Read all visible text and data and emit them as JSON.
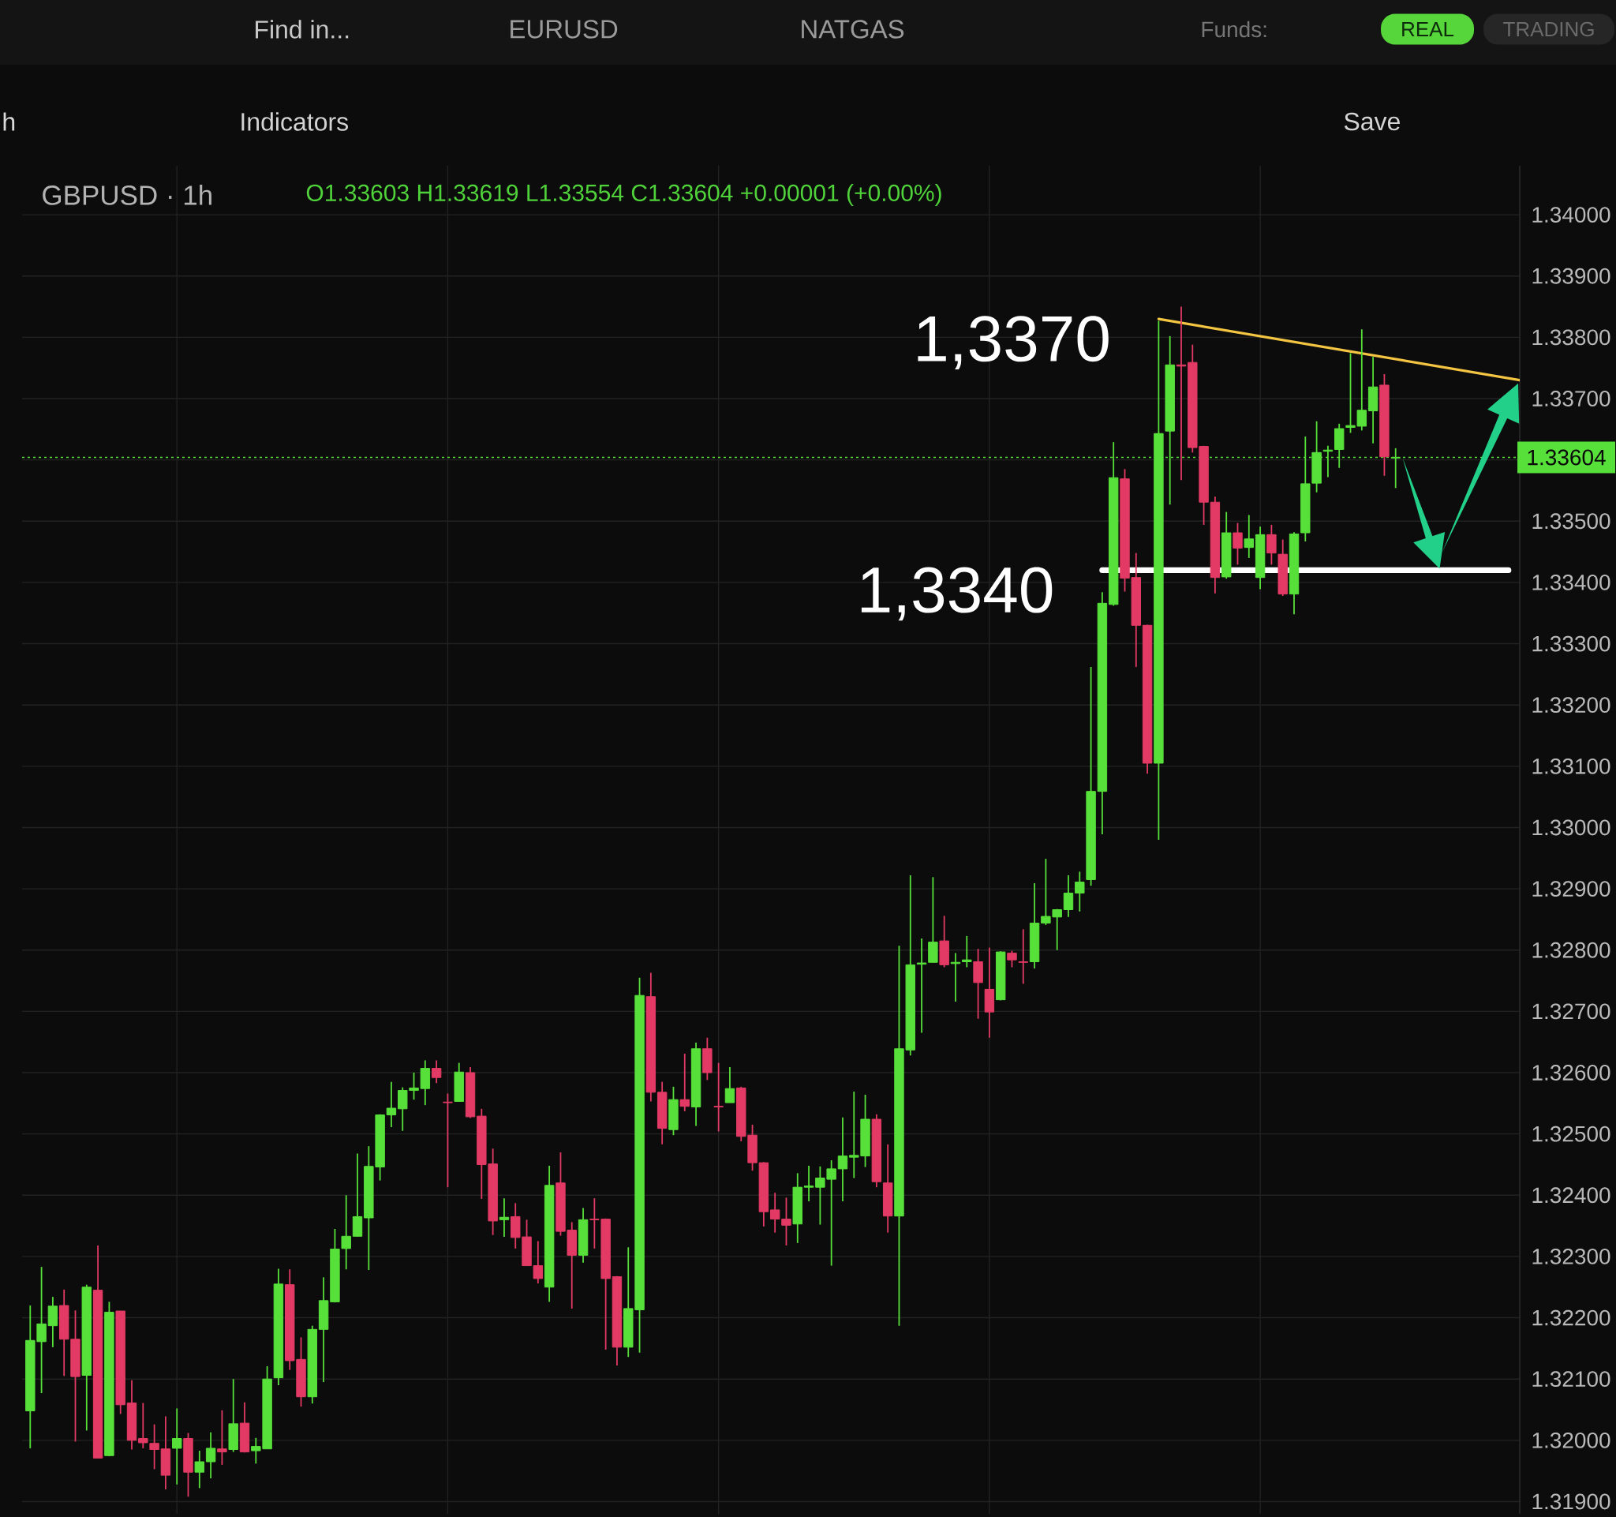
{
  "chart_data": {
    "type": "candlestick",
    "title": "GBPUSD · 1h",
    "subtitle": "O1.33603 H1.33619 L1.33554 C1.33604 +0.00001 (+0.00%)",
    "categories": [
      null,
      null,
      null,
      null,
      null,
      null,
      null,
      null,
      null,
      null,
      null,
      null,
      null,
      null,
      null,
      null,
      null,
      null,
      null,
      null,
      null,
      null,
      null,
      null,
      null,
      null,
      null,
      null,
      null,
      null,
      null,
      null,
      null,
      null,
      null,
      null,
      null,
      null,
      null,
      null,
      null,
      null,
      null,
      null,
      null,
      null,
      null,
      null,
      null,
      null,
      null,
      null,
      null,
      null,
      null,
      null,
      null,
      null,
      null,
      null,
      null,
      null,
      null,
      null,
      null,
      null,
      null,
      null,
      null,
      null,
      null,
      null,
      null,
      null,
      null,
      null,
      null,
      null,
      null,
      null,
      null,
      null,
      null,
      null,
      null,
      null,
      null,
      null,
      null,
      null,
      null,
      null,
      null,
      null,
      null,
      null,
      null,
      null,
      null,
      null,
      null,
      null,
      null,
      null,
      null,
      null,
      null,
      null,
      null,
      null,
      null,
      null,
      null,
      null,
      null,
      null,
      null,
      null,
      null,
      null,
      null,
      null,
      null,
      null,
      null,
      null,
      null,
      null,
      null,
      null,
      null,
      null,
      null
    ],
    "ohlc": [
      [
        1.32048,
        1.3222,
        1.31987,
        1.32163
      ],
      [
        1.32161,
        1.32283,
        1.32077,
        1.3219
      ],
      [
        1.32187,
        1.32234,
        1.32152,
        1.32219
      ],
      [
        1.3222,
        1.32246,
        1.32105,
        1.32165
      ],
      [
        1.32165,
        1.32212,
        1.31998,
        1.32104
      ],
      [
        1.32106,
        1.32254,
        1.32016,
        1.3225
      ],
      [
        1.32245,
        1.32318,
        1.31971,
        1.31971
      ],
      [
        1.31975,
        1.32226,
        1.31974,
        1.32209
      ],
      [
        1.32211,
        1.32211,
        1.32043,
        1.32058
      ],
      [
        1.32061,
        1.32098,
        1.31985,
        1.32
      ],
      [
        1.32003,
        1.32061,
        1.31987,
        1.31996
      ],
      [
        1.31995,
        1.32026,
        1.31953,
        1.31985
      ],
      [
        1.31986,
        1.32039,
        1.3192,
        1.31943
      ],
      [
        1.31987,
        1.32052,
        1.31928,
        1.32003
      ],
      [
        1.32003,
        1.32012,
        1.31908,
        1.31948
      ],
      [
        1.31948,
        1.31983,
        1.31922,
        1.31965
      ],
      [
        1.31965,
        1.32013,
        1.31938,
        1.31987
      ],
      [
        1.31986,
        1.32049,
        1.3196,
        1.31981
      ],
      [
        1.31985,
        1.321,
        1.31981,
        1.32027
      ],
      [
        1.32028,
        1.32062,
        1.3198,
        1.31981
      ],
      [
        1.31983,
        1.32004,
        1.31962,
        1.3199
      ],
      [
        1.31986,
        1.32121,
        1.31986,
        1.321
      ],
      [
        1.32102,
        1.3228,
        1.3209,
        1.32255
      ],
      [
        1.32254,
        1.32279,
        1.32115,
        1.3213
      ],
      [
        1.32132,
        1.32168,
        1.32055,
        1.32071
      ],
      [
        1.32071,
        1.32187,
        1.3206,
        1.32181
      ],
      [
        1.32181,
        1.32266,
        1.32095,
        1.32228
      ],
      [
        1.32226,
        1.32345,
        1.32225,
        1.32312
      ],
      [
        1.32313,
        1.324,
        1.32279,
        1.32333
      ],
      [
        1.32333,
        1.32468,
        1.32332,
        1.32365
      ],
      [
        1.32363,
        1.3248,
        1.32278,
        1.32447
      ],
      [
        1.32446,
        1.32532,
        1.32424,
        1.32531
      ],
      [
        1.32531,
        1.32585,
        1.32511,
        1.32542
      ],
      [
        1.32541,
        1.32576,
        1.32505,
        1.32571
      ],
      [
        1.32571,
        1.326,
        1.32556,
        1.32575
      ],
      [
        1.32574,
        1.3262,
        1.32547,
        1.32607
      ],
      [
        1.32607,
        1.3262,
        1.32583,
        1.32592
      ],
      [
        1.32552,
        1.32566,
        1.32413,
        1.32551
      ],
      [
        1.32553,
        1.32616,
        1.32553,
        1.32601
      ],
      [
        1.326,
        1.32609,
        1.32526,
        1.32528
      ],
      [
        1.32529,
        1.32541,
        1.32394,
        1.3245
      ],
      [
        1.32451,
        1.32476,
        1.32335,
        1.32358
      ],
      [
        1.3236,
        1.32395,
        1.32332,
        1.32364
      ],
      [
        1.32365,
        1.32387,
        1.32313,
        1.32331
      ],
      [
        1.32332,
        1.3236,
        1.32285,
        1.32285
      ],
      [
        1.32285,
        1.32325,
        1.32256,
        1.32264
      ],
      [
        1.3225,
        1.32448,
        1.32226,
        1.32416
      ],
      [
        1.3242,
        1.3247,
        1.32334,
        1.32341
      ],
      [
        1.32343,
        1.32356,
        1.32215,
        1.32302
      ],
      [
        1.32302,
        1.32379,
        1.3229,
        1.3236
      ],
      [
        1.32361,
        1.32395,
        1.32313,
        1.3236
      ],
      [
        1.32361,
        1.32362,
        1.32148,
        1.32264
      ],
      [
        1.32267,
        1.32268,
        1.32122,
        1.32152
      ],
      [
        1.32152,
        1.32315,
        1.32136,
        1.32215
      ],
      [
        1.32213,
        1.32755,
        1.32143,
        1.32726
      ],
      [
        1.32724,
        1.32763,
        1.32553,
        1.32568
      ],
      [
        1.32568,
        1.32585,
        1.32483,
        1.32509
      ],
      [
        1.32507,
        1.32577,
        1.32498,
        1.32556
      ],
      [
        1.32556,
        1.32631,
        1.32537,
        1.32545
      ],
      [
        1.32544,
        1.32649,
        1.32513,
        1.32639
      ],
      [
        1.32639,
        1.32657,
        1.32588,
        1.326
      ],
      [
        1.32545,
        1.32616,
        1.32504,
        1.32544
      ],
      [
        1.32551,
        1.32609,
        1.32551,
        1.32574
      ],
      [
        1.32575,
        1.32577,
        1.32488,
        1.32496
      ],
      [
        1.32498,
        1.32515,
        1.3244,
        1.32453
      ],
      [
        1.32453,
        1.32454,
        1.32349,
        1.32373
      ],
      [
        1.32376,
        1.32404,
        1.32339,
        1.32361
      ],
      [
        1.32361,
        1.32396,
        1.32318,
        1.32351
      ],
      [
        1.32353,
        1.32436,
        1.32322,
        1.32413
      ],
      [
        1.32413,
        1.32448,
        1.3239,
        1.32415
      ],
      [
        1.32413,
        1.32447,
        1.32352,
        1.32428
      ],
      [
        1.32426,
        1.32457,
        1.32285,
        1.32443
      ],
      [
        1.32443,
        1.32527,
        1.3239,
        1.32464
      ],
      [
        1.32462,
        1.32569,
        1.32428,
        1.32465
      ],
      [
        1.32464,
        1.32564,
        1.32446,
        1.32524
      ],
      [
        1.32524,
        1.32532,
        1.32413,
        1.32422
      ],
      [
        1.3242,
        1.32483,
        1.32339,
        1.32366
      ],
      [
        1.32366,
        1.32807,
        1.32187,
        1.32639
      ],
      [
        1.32637,
        1.32922,
        1.32628,
        1.32776
      ],
      [
        1.32777,
        1.32819,
        1.32665,
        1.32779
      ],
      [
        1.3278,
        1.32919,
        1.3278,
        1.32813
      ],
      [
        1.32815,
        1.32856,
        1.32772,
        1.32776
      ],
      [
        1.32778,
        1.32795,
        1.32716,
        1.3278
      ],
      [
        1.32781,
        1.32823,
        1.32772,
        1.32784
      ],
      [
        1.32781,
        1.32802,
        1.32688,
        1.32747
      ],
      [
        1.32736,
        1.32804,
        1.32657,
        1.32699
      ],
      [
        1.32719,
        1.32798,
        1.32718,
        1.32797
      ],
      [
        1.32795,
        1.32799,
        1.32772,
        1.32784
      ],
      [
        1.32781,
        1.32834,
        1.32745,
        1.3278
      ],
      [
        1.32781,
        1.32909,
        1.3277,
        1.32844
      ],
      [
        1.32844,
        1.32949,
        1.32841,
        1.32855
      ],
      [
        1.32854,
        1.32867,
        1.328,
        1.32866
      ],
      [
        1.32866,
        1.32922,
        1.32854,
        1.32893
      ],
      [
        1.32893,
        1.32928,
        1.32863,
        1.32911
      ],
      [
        1.32915,
        1.33262,
        1.32905,
        1.33059
      ],
      [
        1.33059,
        1.33384,
        1.32989,
        1.33366
      ],
      [
        1.33364,
        1.33629,
        1.33362,
        1.33571
      ],
      [
        1.33569,
        1.33585,
        1.33385,
        1.33407
      ],
      [
        1.33408,
        1.33448,
        1.33262,
        1.3333
      ],
      [
        1.3333,
        1.33331,
        1.33088,
        1.33105
      ],
      [
        1.33105,
        1.33827,
        1.3298,
        1.33643
      ],
      [
        1.33647,
        1.33802,
        1.33527,
        1.33755
      ],
      [
        1.33755,
        1.3385,
        1.33567,
        1.33753
      ],
      [
        1.33759,
        1.33788,
        1.33612,
        1.3362
      ],
      [
        1.33622,
        1.33623,
        1.33494,
        1.33531
      ],
      [
        1.33531,
        1.3354,
        1.33382,
        1.33408
      ],
      [
        1.33409,
        1.33515,
        1.33406,
        1.33481
      ],
      [
        1.33481,
        1.33497,
        1.33429,
        1.33456
      ],
      [
        1.33457,
        1.3351,
        1.3344,
        1.33471
      ],
      [
        1.33408,
        1.33491,
        1.33389,
        1.33478
      ],
      [
        1.33478,
        1.33494,
        1.33429,
        1.33448
      ],
      [
        1.33446,
        1.3347,
        1.33378,
        1.33381
      ],
      [
        1.33381,
        1.33482,
        1.33348,
        1.33479
      ],
      [
        1.33481,
        1.33638,
        1.33467,
        1.33561
      ],
      [
        1.33562,
        1.33663,
        1.33547,
        1.33612
      ],
      [
        1.33614,
        1.33623,
        1.33572,
        1.33616
      ],
      [
        1.33617,
        1.33659,
        1.33587,
        1.33651
      ],
      [
        1.33653,
        1.33774,
        1.33644,
        1.33656
      ],
      [
        1.33655,
        1.33813,
        1.33648,
        1.33681
      ],
      [
        1.3368,
        1.33768,
        1.33627,
        1.33719
      ],
      [
        1.33722,
        1.3374,
        1.33574,
        1.33605
      ],
      [
        1.33603,
        1.33619,
        1.33554,
        1.33604
      ],
      null,
      null,
      null,
      null,
      null,
      null,
      null,
      null,
      null,
      null,
      null
    ],
    "colors": [
      "#57e03a",
      "#57e03a",
      "#57e03a",
      "#e23a64",
      "#e23a64",
      "#57e03a",
      "#e23a64",
      "#57e03a",
      "#e23a64",
      "#e23a64",
      "#e23a64",
      "#e23a64",
      "#e23a64",
      "#57e03a",
      "#e23a64",
      "#57e03a",
      "#57e03a",
      "#e23a64",
      "#57e03a",
      "#e23a64",
      "#57e03a",
      "#57e03a",
      "#57e03a",
      "#e23a64",
      "#e23a64",
      "#57e03a",
      "#57e03a",
      "#57e03a",
      "#57e03a",
      "#57e03a",
      "#57e03a",
      "#57e03a",
      "#57e03a",
      "#57e03a",
      "#57e03a",
      "#57e03a",
      "#e23a64",
      "#e23a64",
      "#57e03a",
      "#e23a64",
      "#e23a64",
      "#e23a64",
      "#57e03a",
      "#e23a64",
      "#e23a64",
      "#e23a64",
      "#57e03a",
      "#e23a64",
      "#e23a64",
      "#57e03a",
      "#e23a64",
      "#e23a64",
      "#e23a64",
      "#57e03a",
      "#57e03a",
      "#e23a64",
      "#e23a64",
      "#57e03a",
      "#e23a64",
      "#57e03a",
      "#e23a64",
      "#e23a64",
      "#57e03a",
      "#e23a64",
      "#e23a64",
      "#e23a64",
      "#e23a64",
      "#e23a64",
      "#57e03a",
      "#57e03a",
      "#57e03a",
      "#57e03a",
      "#57e03a",
      "#57e03a",
      "#57e03a",
      "#e23a64",
      "#e23a64",
      "#57e03a",
      "#57e03a",
      "#57e03a",
      "#57e03a",
      "#e23a64",
      "#57e03a",
      "#57e03a",
      "#e23a64",
      "#e23a64",
      "#57e03a",
      "#e23a64",
      "#e23a64",
      "#57e03a",
      "#57e03a",
      "#57e03a",
      "#57e03a",
      "#57e03a",
      "#57e03a",
      "#57e03a",
      "#57e03a",
      "#e23a64",
      "#e23a64",
      "#e23a64",
      "#57e03a",
      "#57e03a",
      "#e23a64",
      "#e23a64",
      "#e23a64",
      "#e23a64",
      "#57e03a",
      "#e23a64",
      "#57e03a",
      "#57e03a",
      "#e23a64",
      "#e23a64",
      "#57e03a",
      "#57e03a",
      "#57e03a",
      "#57e03a",
      "#57e03a",
      "#57e03a",
      "#57e03a",
      "#57e03a",
      "#e23a64",
      "#57e03a",
      null,
      null,
      null,
      null,
      null,
      null,
      null,
      null,
      null,
      null,
      null
    ],
    "series": [
      {
        "type": "line",
        "name": "1,3370",
        "color": "#f4c542",
        "values": [
          null,
          null,
          null,
          null,
          null,
          null,
          null,
          null,
          null,
          null,
          null,
          null,
          null,
          null,
          null,
          null,
          null,
          null,
          null,
          null,
          null,
          null,
          null,
          null,
          null,
          null,
          null,
          null,
          null,
          null,
          null,
          null,
          null,
          null,
          null,
          null,
          null,
          null,
          null,
          null,
          null,
          null,
          null,
          null,
          null,
          null,
          null,
          null,
          null,
          null,
          null,
          null,
          null,
          null,
          null,
          null,
          null,
          null,
          null,
          null,
          null,
          null,
          null,
          null,
          null,
          null,
          null,
          null,
          null,
          null,
          null,
          null,
          null,
          null,
          null,
          null,
          null,
          null,
          null,
          null,
          null,
          null,
          null,
          null,
          null,
          null,
          null,
          null,
          null,
          null,
          null,
          null,
          null,
          null,
          null,
          null,
          null,
          null,
          null,
          null,
          1.3383,
          null,
          null,
          null,
          null,
          null,
          null,
          null,
          null,
          null,
          null,
          null,
          null,
          null,
          null,
          null,
          null,
          null,
          null,
          null,
          null,
          null,
          null,
          null,
          null,
          null,
          null,
          null,
          null,
          null,
          null,
          null,
          1.3373
        ]
      },
      {
        "type": "line",
        "name": "1,3340",
        "color": "#ffffff",
        "values": [
          null,
          null,
          null,
          null,
          null,
          null,
          null,
          null,
          null,
          null,
          null,
          null,
          null,
          null,
          null,
          null,
          null,
          null,
          null,
          null,
          null,
          null,
          null,
          null,
          null,
          null,
          null,
          null,
          null,
          null,
          null,
          null,
          null,
          null,
          null,
          null,
          null,
          null,
          null,
          null,
          null,
          null,
          null,
          null,
          null,
          null,
          null,
          null,
          null,
          null,
          null,
          null,
          null,
          null,
          null,
          null,
          null,
          null,
          null,
          null,
          null,
          null,
          null,
          null,
          null,
          null,
          null,
          null,
          null,
          null,
          null,
          null,
          null,
          null,
          null,
          null,
          null,
          null,
          null,
          null,
          null,
          null,
          null,
          null,
          null,
          null,
          null,
          null,
          null,
          null,
          null,
          null,
          null,
          null,
          null,
          1.3342,
          null,
          null,
          null,
          null,
          null,
          null,
          null,
          null,
          null,
          null,
          null,
          null,
          null,
          null,
          null,
          null,
          null,
          null,
          null,
          null,
          null,
          null,
          null,
          null,
          null,
          null,
          null,
          null,
          null,
          null,
          null,
          null,
          null,
          null,
          null,
          1.3342,
          null
        ]
      }
    ],
    "ylim": [
      1.3188,
      1.3408
    ],
    "yticks": [
      {
        "value": 1.319,
        "label": "1.31900"
      },
      {
        "value": 1.32,
        "label": "1.32000"
      },
      {
        "value": 1.321,
        "label": "1.32100"
      },
      {
        "value": 1.322,
        "label": "1.32200"
      },
      {
        "value": 1.323,
        "label": "1.32300"
      },
      {
        "value": 1.324,
        "label": "1.32400"
      },
      {
        "value": 1.325,
        "label": "1.32500"
      },
      {
        "value": 1.326,
        "label": "1.32600"
      },
      {
        "value": 1.327,
        "label": "1.32700"
      },
      {
        "value": 1.328,
        "label": "1.32800"
      },
      {
        "value": 1.329,
        "label": "1.32900"
      },
      {
        "value": 1.33,
        "label": "1.33000"
      },
      {
        "value": 1.331,
        "label": "1.33100"
      },
      {
        "value": 1.332,
        "label": "1.33200"
      },
      {
        "value": 1.333,
        "label": "1.33300"
      },
      {
        "value": 1.334,
        "label": "1.33400"
      },
      {
        "value": 1.335,
        "label": "1.33500"
      },
      {
        "value": 1.336,
        "label": null
      },
      {
        "value": 1.337,
        "label": "1.33700"
      },
      {
        "value": 1.338,
        "label": "1.33800"
      },
      {
        "value": 1.339,
        "label": "1.33900"
      },
      {
        "value": 1.34,
        "label": "1.34000"
      }
    ],
    "ref_lines": [
      {
        "axis": "y",
        "value": 1.33604,
        "label": "1.33604",
        "color": "#57e03a",
        "line_style": "dotted"
      }
    ],
    "grid": true,
    "annotations": [
      "Find in...",
      "EURUSD",
      "NATGAS",
      "Funds:",
      "REAL",
      "TRADING",
      "h",
      "Indicators",
      "Save"
    ]
  }
}
